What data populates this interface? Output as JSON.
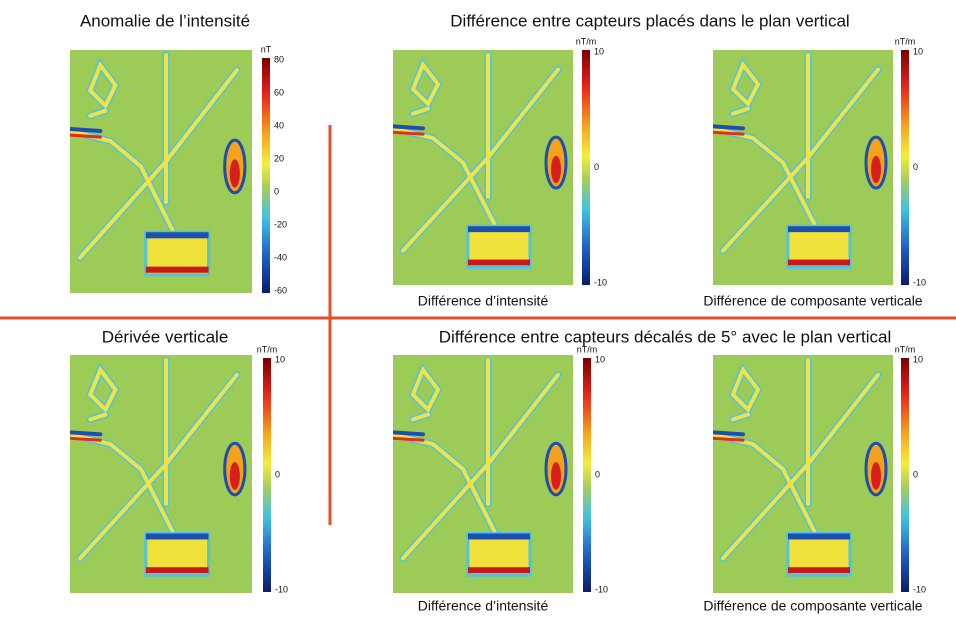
{
  "titles": [
    "Anomalie de l’intensité",
    "Différence entre capteurs placés dans le plan vertical",
    "Dérivée verticale",
    "Différence entre capteurs décalés de 5° avec le plan vertical"
  ],
  "panels": [
    {
      "unit": "nT",
      "ticks": [
        80,
        60,
        40,
        20,
        0,
        -20,
        -40,
        -60
      ]
    },
    {
      "unit": "nT/m",
      "ticks": [
        10,
        0,
        -10
      ],
      "caption": "Différence d’intensité"
    },
    {
      "unit": "nT/m",
      "ticks": [
        10,
        0,
        -10
      ],
      "caption": "Différence de composante verticale"
    },
    {
      "unit": "nT/m",
      "ticks": [
        10,
        0,
        -10
      ]
    },
    {
      "unit": "nT/m",
      "ticks": [
        10,
        0,
        -10
      ],
      "caption": "Différence d’intensité"
    },
    {
      "unit": "nT/m",
      "ticks": [
        10,
        0,
        -10
      ],
      "caption": "Différence de composante verticale"
    }
  ]
}
